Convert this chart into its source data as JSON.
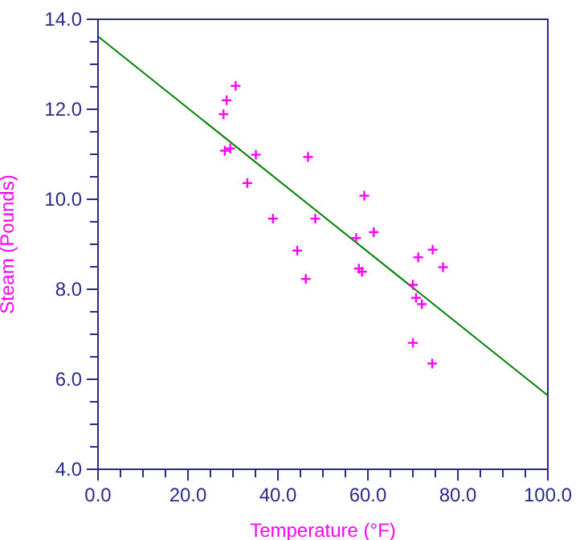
{
  "chart_data": {
    "type": "scatter",
    "xlabel": "Temperature (°F)",
    "ylabel": "Steam (Pounds)",
    "xlim": [
      0,
      100
    ],
    "ylim": [
      4,
      14
    ],
    "xticks": [
      {
        "value": 0,
        "label": "0.0"
      },
      {
        "value": 5,
        "label": null
      },
      {
        "value": 10,
        "label": null
      },
      {
        "value": 15,
        "label": null
      },
      {
        "value": 20,
        "label": "20.0"
      },
      {
        "value": 25,
        "label": null
      },
      {
        "value": 30,
        "label": null
      },
      {
        "value": 35,
        "label": null
      },
      {
        "value": 40,
        "label": "40.0"
      },
      {
        "value": 45,
        "label": null
      },
      {
        "value": 50,
        "label": null
      },
      {
        "value": 55,
        "label": null
      },
      {
        "value": 60,
        "label": "60.0"
      },
      {
        "value": 65,
        "label": null
      },
      {
        "value": 70,
        "label": null
      },
      {
        "value": 75,
        "label": null
      },
      {
        "value": 80,
        "label": "80.0"
      },
      {
        "value": 85,
        "label": null
      },
      {
        "value": 90,
        "label": null
      },
      {
        "value": 95,
        "label": null
      },
      {
        "value": 100,
        "label": "100.0"
      }
    ],
    "yticks": [
      {
        "value": 4,
        "label": "4.0"
      },
      {
        "value": 4.5,
        "label": null
      },
      {
        "value": 5,
        "label": null
      },
      {
        "value": 5.5,
        "label": null
      },
      {
        "value": 6,
        "label": "6.0"
      },
      {
        "value": 6.5,
        "label": null
      },
      {
        "value": 7,
        "label": null
      },
      {
        "value": 7.5,
        "label": null
      },
      {
        "value": 8,
        "label": "8.0"
      },
      {
        "value": 8.5,
        "label": null
      },
      {
        "value": 9,
        "label": null
      },
      {
        "value": 9.5,
        "label": null
      },
      {
        "value": 10,
        "label": "10.0"
      },
      {
        "value": 10.5,
        "label": null
      },
      {
        "value": 11,
        "label": null
      },
      {
        "value": 11.5,
        "label": null
      },
      {
        "value": 12,
        "label": "12.0"
      },
      {
        "value": 12.5,
        "label": null
      },
      {
        "value": 13,
        "label": null
      },
      {
        "value": 13.5,
        "label": null
      },
      {
        "value": 14,
        "label": "14.0"
      }
    ],
    "grid": false,
    "series": [
      {
        "color": "#ff00ff",
        "marker": "cross",
        "x": [
          30.6,
          28.6,
          27.9,
          28.2,
          29.4,
          35.1,
          46.7,
          33.2,
          38.9,
          48.3,
          44.3,
          46.2,
          59.2,
          61.3,
          57.4,
          74.4,
          71.2,
          76.7,
          58.0,
          58.7,
          70.0,
          70.7,
          72.0,
          70.0,
          74.3
        ],
        "values": [
          12.52,
          12.2,
          11.89,
          11.08,
          11.13,
          10.99,
          10.94,
          10.36,
          9.57,
          9.57,
          8.86,
          8.23,
          10.08,
          9.27,
          9.14,
          8.88,
          8.71,
          8.49,
          8.46,
          8.39,
          8.1,
          7.81,
          7.67,
          6.81,
          6.35
        ]
      },
      {
        "type": "line",
        "color": "#008000",
        "marker": "none",
        "line_style": "solid",
        "x": [
          0,
          100
        ],
        "values": [
          13.62,
          5.64
        ]
      }
    ]
  }
}
